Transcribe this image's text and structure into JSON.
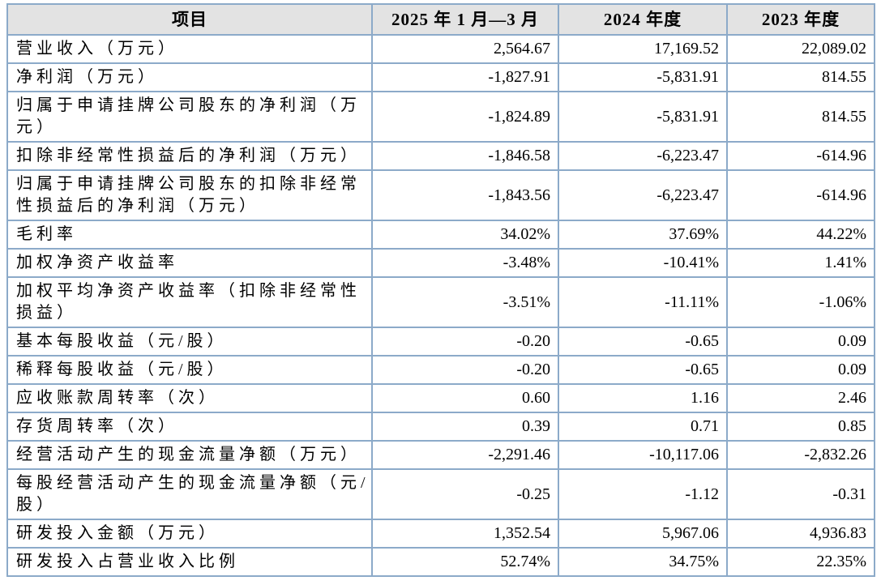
{
  "table": {
    "title_semantic": "key-financial-indicators-table",
    "colors": {
      "border": "#8caac9",
      "header_background": "#e3e3e3",
      "text": "#000000",
      "page_background": "#ffffff"
    },
    "columns": [
      "项目",
      "2025 年 1 月—3 月",
      "2024 年度",
      "2023 年度"
    ],
    "rows": [
      {
        "label": "营业收入（万元）",
        "values": [
          "2,564.67",
          "17,169.52",
          "22,089.02"
        ]
      },
      {
        "label": "净利润（万元）",
        "values": [
          "-1,827.91",
          "-5,831.91",
          "814.55"
        ]
      },
      {
        "label": "归属于申请挂牌公司股东的净利润（万元）",
        "values": [
          "-1,824.89",
          "-5,831.91",
          "814.55"
        ]
      },
      {
        "label": "扣除非经常性损益后的净利润（万元）",
        "values": [
          "-1,846.58",
          "-6,223.47",
          "-614.96"
        ]
      },
      {
        "label": "归属于申请挂牌公司股东的扣除非经常性损益后的净利润（万元）",
        "values": [
          "-1,843.56",
          "-6,223.47",
          "-614.96"
        ]
      },
      {
        "label": "毛利率",
        "values": [
          "34.02%",
          "37.69%",
          "44.22%"
        ]
      },
      {
        "label": "加权净资产收益率",
        "values": [
          "-3.48%",
          "-10.41%",
          "1.41%"
        ]
      },
      {
        "label": "加权平均净资产收益率（扣除非经常性损益）",
        "values": [
          "-3.51%",
          "-11.11%",
          "-1.06%"
        ]
      },
      {
        "label": "基本每股收益（元/股）",
        "values": [
          "-0.20",
          "-0.65",
          "0.09"
        ]
      },
      {
        "label": "稀释每股收益（元/股）",
        "values": [
          "-0.20",
          "-0.65",
          "0.09"
        ]
      },
      {
        "label": "应收账款周转率（次）",
        "values": [
          "0.60",
          "1.16",
          "2.46"
        ]
      },
      {
        "label": "存货周转率（次）",
        "values": [
          "0.39",
          "0.71",
          "0.85"
        ]
      },
      {
        "label": "经营活动产生的现金流量净额（万元）",
        "values": [
          "-2,291.46",
          "-10,117.06",
          "-2,832.26"
        ]
      },
      {
        "label": "每股经营活动产生的现金流量净额（元/股）",
        "values": [
          "-0.25",
          "-1.12",
          "-0.31"
        ]
      },
      {
        "label": "研发投入金额（万元）",
        "values": [
          "1,352.54",
          "5,967.06",
          "4,936.83"
        ]
      },
      {
        "label": "研发投入占营业收入比例",
        "values": [
          "52.74%",
          "34.75%",
          "22.35%"
        ]
      }
    ]
  }
}
